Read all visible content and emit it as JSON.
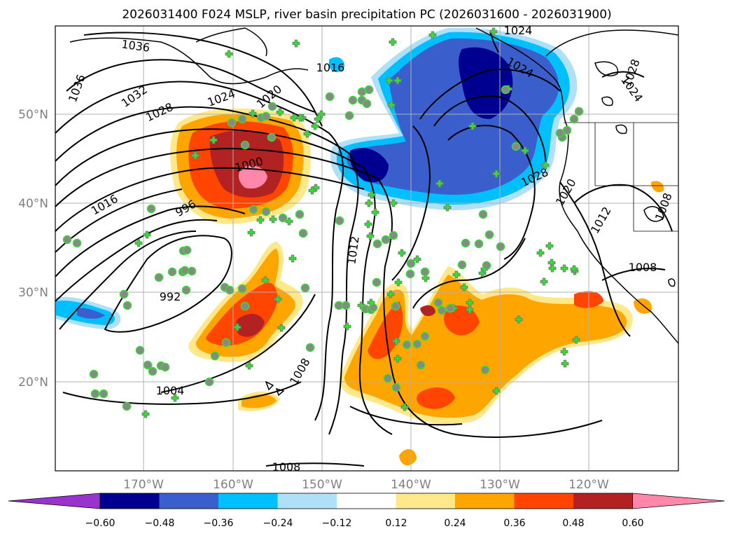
{
  "title": "2026031400 F024 MSLP, river basin precipitation PC (2026031600 - 2026031900)",
  "lat_labels": [
    "50°N",
    "40°N",
    "30°N",
    "20°N"
  ],
  "lon_labels": [
    "170°W",
    "160°W",
    "150°W",
    "140°W",
    "130°W",
    "120°W"
  ],
  "colorbar": {
    "ticks": [
      "−0.60",
      "−0.48",
      "−0.36",
      "−0.24",
      "−0.12",
      "0.12",
      "0.24",
      "0.36",
      "0.48",
      "0.60"
    ],
    "colors": [
      "#9933cc",
      "#000090",
      "#3a5fcd",
      "#00bfff",
      "#b0e0f8",
      "#ffffff",
      "#ffe88a",
      "#ffa500",
      "#ff4500",
      "#b22222",
      "#ff88aa"
    ]
  },
  "isobar_labels": [
    "1036",
    "1036",
    "1032",
    "1028",
    "1024",
    "1020",
    "1016",
    "1016",
    "1000",
    "996",
    "992",
    "1004",
    "1008",
    "1008",
    "1012",
    "1024",
    "1024",
    "1028",
    "1028",
    "1024",
    "1020",
    "1012",
    "1008",
    "1008"
  ],
  "colors": {
    "land_line": "#000000",
    "grid": "#b0b0b0",
    "marker": "#33dd33",
    "circle_marker": "#888888"
  }
}
